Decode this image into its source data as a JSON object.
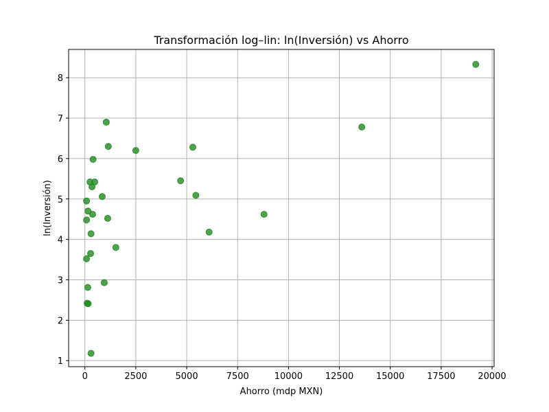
{
  "chart_data": {
    "type": "scatter",
    "title": "Transformación log–lin: ln(Inversión) vs Ahorro",
    "xlabel": "Ahorro (mdp MXN)",
    "ylabel": "ln(Inversión)",
    "xlim": [
      -800,
      20100
    ],
    "ylim": [
      0.85,
      8.7
    ],
    "xticks": [
      0,
      2500,
      5000,
      7500,
      10000,
      12500,
      15000,
      17500,
      20000
    ],
    "yticks": [
      1,
      2,
      3,
      4,
      5,
      6,
      7,
      8
    ],
    "xtick_labels": [
      "0",
      "2500",
      "5000",
      "7500",
      "10000",
      "12500",
      "15000",
      "17500",
      "20000"
    ],
    "ytick_labels": [
      "1",
      "2",
      "3",
      "4",
      "5",
      "6",
      "7",
      "8"
    ],
    "grid": true,
    "point_color": "#228B22",
    "points": [
      {
        "x": 19200,
        "y": 8.33
      },
      {
        "x": 13600,
        "y": 6.78
      },
      {
        "x": 1050,
        "y": 6.9
      },
      {
        "x": 1150,
        "y": 6.3
      },
      {
        "x": 2500,
        "y": 6.2
      },
      {
        "x": 5300,
        "y": 6.28
      },
      {
        "x": 400,
        "y": 5.98
      },
      {
        "x": 250,
        "y": 5.42
      },
      {
        "x": 480,
        "y": 5.42
      },
      {
        "x": 350,
        "y": 5.3
      },
      {
        "x": 4700,
        "y": 5.45
      },
      {
        "x": 5450,
        "y": 5.09
      },
      {
        "x": 850,
        "y": 5.06
      },
      {
        "x": 80,
        "y": 4.95
      },
      {
        "x": 150,
        "y": 4.7
      },
      {
        "x": 380,
        "y": 4.62
      },
      {
        "x": 8800,
        "y": 4.62
      },
      {
        "x": 1120,
        "y": 4.52
      },
      {
        "x": 80,
        "y": 4.48
      },
      {
        "x": 300,
        "y": 4.14
      },
      {
        "x": 6100,
        "y": 4.18
      },
      {
        "x": 1520,
        "y": 3.8
      },
      {
        "x": 280,
        "y": 3.65
      },
      {
        "x": 80,
        "y": 3.52
      },
      {
        "x": 950,
        "y": 2.93
      },
      {
        "x": 140,
        "y": 2.81
      },
      {
        "x": 110,
        "y": 2.42
      },
      {
        "x": 160,
        "y": 2.41
      },
      {
        "x": 300,
        "y": 1.18
      }
    ]
  }
}
